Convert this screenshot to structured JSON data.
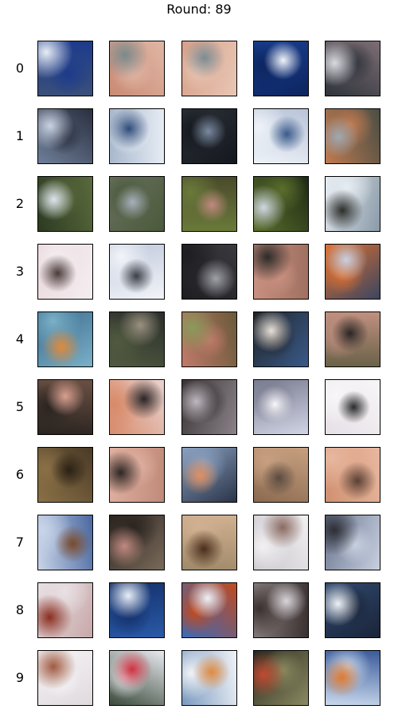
{
  "title": "Round: 89",
  "rows": [
    {
      "label": "0",
      "tiles": [
        {
          "bg": "#3a4f7a",
          "c1": "#e8eef6",
          "c2": "#1d3b8c"
        },
        {
          "bg": "#c98a74",
          "c1": "#7a8a8c",
          "c2": "#e0b6a4"
        },
        {
          "bg": "#d7a08a",
          "c1": "#7c8c94",
          "c2": "#e8c6b4"
        },
        {
          "bg": "#1a3f8f",
          "c1": "#f0f4fa",
          "c2": "#0d2560"
        },
        {
          "bg": "#7c6e74",
          "c1": "#d8dae0",
          "c2": "#30343c"
        }
      ]
    },
    {
      "label": "1",
      "tiles": [
        {
          "bg": "#6e7e98",
          "c1": "#c8d2e2",
          "c2": "#2a3040"
        },
        {
          "bg": "#a8b8cc",
          "c1": "#2e4a78",
          "c2": "#e6ecf4"
        },
        {
          "bg": "#2c3038",
          "c1": "#7a8aa0",
          "c2": "#14181e"
        },
        {
          "bg": "#b8c4d8",
          "c1": "#3a5a8a",
          "c2": "#eef2f8"
        },
        {
          "bg": "#4a4e44",
          "c1": "#a0a8b0",
          "c2": "#c07a50"
        }
      ]
    },
    {
      "label": "2",
      "tiles": [
        {
          "bg": "#2c3a22",
          "c1": "#dde4ee",
          "c2": "#5a6a3c"
        },
        {
          "bg": "#6a7060",
          "c1": "#a8b0bc",
          "c2": "#4a5a3a"
        },
        {
          "bg": "#4a4a2a",
          "c1": "#c08a80",
          "c2": "#6a7a3a"
        },
        {
          "bg": "#1e2a14",
          "c1": "#d0d8e0",
          "c2": "#5a6e2c"
        },
        {
          "bg": "#8a9aa8",
          "c1": "#2c2e2a",
          "c2": "#e6ecf2"
        }
      ]
    },
    {
      "label": "3",
      "tiles": [
        {
          "bg": "#ead8dc",
          "c1": "#4a3a3a",
          "c2": "#f4eef0"
        },
        {
          "bg": "#c0c8dc",
          "c1": "#3a4048",
          "c2": "#f2f4f8"
        },
        {
          "bg": "#3a3a3e",
          "c1": "#a0a0a8",
          "c2": "#1e1e22"
        },
        {
          "bg": "#a07060",
          "c1": "#2c2a28",
          "c2": "#c89080"
        },
        {
          "bg": "#3a4660",
          "c1": "#c8d0e0",
          "c2": "#e07030"
        }
      ]
    },
    {
      "label": "4",
      "tiles": [
        {
          "bg": "#3a6a8a",
          "c1": "#e08a3a",
          "c2": "#7ab0c8"
        },
        {
          "bg": "#2a2e2a",
          "c1": "#9a9080",
          "c2": "#505a40"
        },
        {
          "bg": "#6a5a3a",
          "c1": "#8a9a5a",
          "c2": "#c07a6a"
        },
        {
          "bg": "#3a5a8a",
          "c1": "#e8e0d8",
          "c2": "#202428"
        },
        {
          "bg": "#6a6248",
          "c1": "#2a2624",
          "c2": "#c09080"
        }
      ]
    },
    {
      "label": "5",
      "tiles": [
        {
          "bg": "#6a5044",
          "c1": "#d8a090",
          "c2": "#2a2420"
        },
        {
          "bg": "#e8d4d0",
          "c1": "#2a2426",
          "c2": "#d88a6a"
        },
        {
          "bg": "#8a8288",
          "c1": "#c0b8c0",
          "c2": "#3a3436"
        },
        {
          "bg": "#d0d4e4",
          "c1": "#f6f6fa",
          "c2": "#7a7c90"
        },
        {
          "bg": "#e6e0e6",
          "c1": "#2a2a2a",
          "c2": "#f8f6f8"
        }
      ]
    },
    {
      "label": "6",
      "tiles": [
        {
          "bg": "#4a3a26",
          "c1": "#2a2014",
          "c2": "#8a7046"
        },
        {
          "bg": "#c08a7a",
          "c1": "#2e2624",
          "c2": "#e0b0a0"
        },
        {
          "bg": "#2a3448",
          "c1": "#e09060",
          "c2": "#8aa0c0"
        },
        {
          "bg": "#8a6a50",
          "c1": "#5a4a40",
          "c2": "#c8a080"
        },
        {
          "bg": "#d09070",
          "c1": "#5a4034",
          "c2": "#e8b8a0"
        }
      ]
    },
    {
      "label": "7",
      "tiles": [
        {
          "bg": "#4a68a0",
          "c1": "#7a4a2a",
          "c2": "#c8d4e8"
        },
        {
          "bg": "#7a6a5a",
          "c1": "#c08a80",
          "c2": "#2a2420"
        },
        {
          "bg": "#a08a6a",
          "c1": "#4a2e1c",
          "c2": "#d0b090"
        },
        {
          "bg": "#c8c4cc",
          "c1": "#8a6a60",
          "c2": "#f2f0f2"
        },
        {
          "bg": "#6a7690",
          "c1": "#2c2e34",
          "c2": "#c8d0e0"
        }
      ]
    },
    {
      "label": "8",
      "tiles": [
        {
          "bg": "#c8a8a8",
          "c1": "#8a2e20",
          "c2": "#e8e0e4"
        },
        {
          "bg": "#2a5aa8",
          "c1": "#e8eef6",
          "c2": "#14306a"
        },
        {
          "bg": "#3a6ab8",
          "c1": "#eef2f8",
          "c2": "#c04a20"
        },
        {
          "bg": "#8a8080",
          "c1": "#d8d4d8",
          "c2": "#3a3030"
        },
        {
          "bg": "#304a70",
          "c1": "#eef2f6",
          "c2": "#1a2438"
        }
      ]
    },
    {
      "label": "9",
      "tiles": [
        {
          "bg": "#e0dade",
          "c1": "#a05a40",
          "c2": "#f6f4f6"
        },
        {
          "bg": "#3a4a3a",
          "c1": "#d03040",
          "c2": "#e8eaf0"
        },
        {
          "bg": "#7a9ac0",
          "c1": "#e08a40",
          "c2": "#f0f2f6"
        },
        {
          "bg": "#2a2820",
          "c1": "#c04a30",
          "c2": "#8a8a60"
        },
        {
          "bg": "#3a5a9a",
          "c1": "#e07a30",
          "c2": "#c8d8ec"
        }
      ]
    }
  ]
}
